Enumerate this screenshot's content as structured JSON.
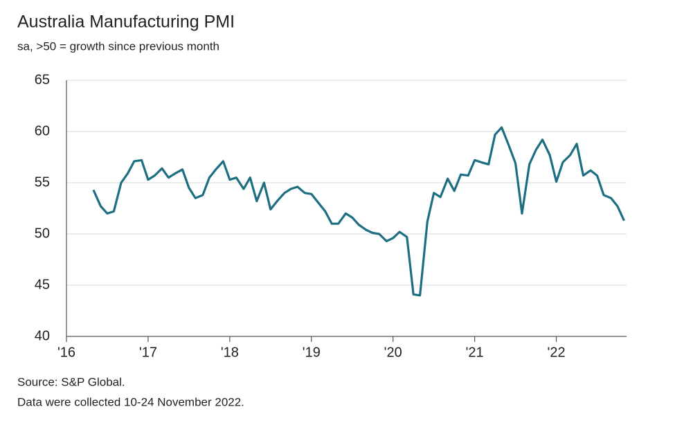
{
  "chart_data": {
    "type": "line",
    "title": "Australia Manufacturing PMI",
    "subtitle": "sa, >50 = growth since previous month",
    "source": "Source: S&P Global.",
    "note": "Data were collected 10-24 November 2022.",
    "color": "#1d6e82",
    "grid": true,
    "x": [
      2016.33,
      2016.42,
      2016.5,
      2016.58,
      2016.67,
      2016.75,
      2016.83,
      2016.92,
      2017,
      2017.08,
      2017.17,
      2017.25,
      2017.33,
      2017.42,
      2017.5,
      2017.58,
      2017.67,
      2017.75,
      2017.83,
      2017.92,
      2018,
      2018.08,
      2018.17,
      2018.25,
      2018.33,
      2018.42,
      2018.5,
      2018.58,
      2018.67,
      2018.75,
      2018.83,
      2018.92,
      2019,
      2019.08,
      2019.17,
      2019.25,
      2019.33,
      2019.42,
      2019.5,
      2019.58,
      2019.67,
      2019.75,
      2019.83,
      2019.92,
      2020,
      2020.08,
      2020.17,
      2020.25,
      2020.33,
      2020.42,
      2020.5,
      2020.58,
      2020.67,
      2020.75,
      2020.83,
      2020.92,
      2021,
      2021.08,
      2021.17,
      2021.25,
      2021.33,
      2021.42,
      2021.5,
      2021.58,
      2021.67,
      2021.75,
      2021.83,
      2021.92,
      2022,
      2022.08,
      2022.17,
      2022.25,
      2022.33,
      2022.42,
      2022.5,
      2022.58,
      2022.67,
      2022.75,
      2022.83
    ],
    "values": [
      54.3,
      52.7,
      52.0,
      52.2,
      55.0,
      55.9,
      57.1,
      57.2,
      55.3,
      55.7,
      56.4,
      55.5,
      55.9,
      56.3,
      54.5,
      53.5,
      53.8,
      55.5,
      56.3,
      57.1,
      55.3,
      55.5,
      54.4,
      55.5,
      53.2,
      55.0,
      52.4,
      53.2,
      54.0,
      54.4,
      54.6,
      54.0,
      53.9,
      53.1,
      52.2,
      51.0,
      51.0,
      52.0,
      51.6,
      50.9,
      50.4,
      50.1,
      50.0,
      49.3,
      49.6,
      50.2,
      49.7,
      44.1,
      44.0,
      51.2,
      54.0,
      53.6,
      55.4,
      54.2,
      55.8,
      55.7,
      57.2,
      57.0,
      56.8,
      59.7,
      60.4,
      58.6,
      56.9,
      52.0,
      56.8,
      58.2,
      59.2,
      57.7,
      55.1,
      57.0,
      57.7,
      58.8,
      55.7,
      56.2,
      55.7,
      53.8,
      53.5,
      52.7,
      51.3
    ],
    "xlim": [
      2016,
      2022.86
    ],
    "xticks": [
      {
        "value": 2016,
        "label": "'16"
      },
      {
        "value": 2017,
        "label": "'17"
      },
      {
        "value": 2018,
        "label": "'18"
      },
      {
        "value": 2019,
        "label": "'19"
      },
      {
        "value": 2020,
        "label": "'20"
      },
      {
        "value": 2021,
        "label": "'21"
      },
      {
        "value": 2022,
        "label": "'22"
      }
    ],
    "ylim": [
      40,
      65
    ],
    "yticks": [
      40,
      45,
      50,
      55,
      60,
      65
    ]
  }
}
